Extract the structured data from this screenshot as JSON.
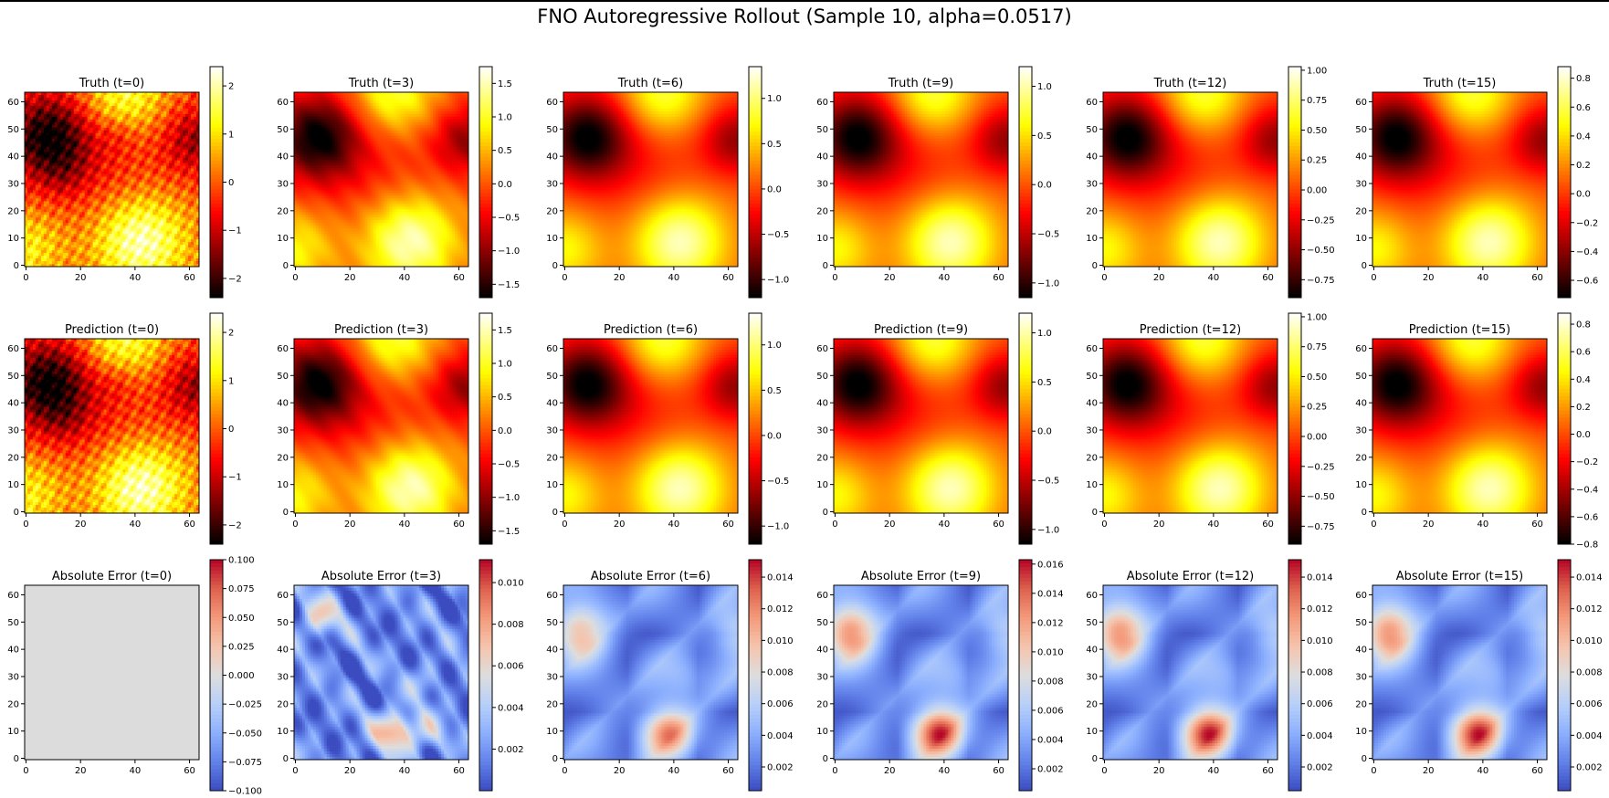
{
  "figure": {
    "title": "FNO Autoregressive Rollout (Sample 10, alpha=0.0517)",
    "colors": {
      "hot_map": "hot",
      "error_map": "coolwarm",
      "error_t0_fill": "#dcdcdc"
    }
  },
  "chart_data": {
    "type": "heatmap",
    "grid": "64x64",
    "xlim": [
      0,
      63
    ],
    "ylim": [
      0,
      63
    ],
    "x_ticks": [
      "0",
      "20",
      "40",
      "60"
    ],
    "y_ticks": [
      "0",
      "10",
      "20",
      "30",
      "40",
      "50",
      "60"
    ],
    "panels": [
      {
        "row": "Truth",
        "title": "Truth (t=0)",
        "cmap": "hot",
        "vmin": -2.4,
        "vmax": 2.4,
        "cbar_ticks": [
          {
            "v": 2,
            "label": "2"
          },
          {
            "v": 1,
            "label": "1"
          },
          {
            "v": 0,
            "label": "0"
          },
          {
            "v": -1,
            "label": "−1"
          },
          {
            "v": -2,
            "label": "−2"
          }
        ]
      },
      {
        "row": "Truth",
        "title": "Truth (t=3)",
        "cmap": "hot",
        "vmin": -1.7,
        "vmax": 1.75,
        "cbar_ticks": [
          {
            "v": 1.5,
            "label": "1.5"
          },
          {
            "v": 1.0,
            "label": "1.0"
          },
          {
            "v": 0.5,
            "label": "0.5"
          },
          {
            "v": 0.0,
            "label": "0.0"
          },
          {
            "v": -0.5,
            "label": "−0.5"
          },
          {
            "v": -1.0,
            "label": "−1.0"
          },
          {
            "v": -1.5,
            "label": "−1.5"
          }
        ]
      },
      {
        "row": "Truth",
        "title": "Truth (t=6)",
        "cmap": "hot",
        "vmin": -1.2,
        "vmax": 1.35,
        "cbar_ticks": [
          {
            "v": 1.0,
            "label": "1.0"
          },
          {
            "v": 0.5,
            "label": "0.5"
          },
          {
            "v": 0.0,
            "label": "0.0"
          },
          {
            "v": -0.5,
            "label": "−0.5"
          },
          {
            "v": -1.0,
            "label": "−1.0"
          }
        ]
      },
      {
        "row": "Truth",
        "title": "Truth (t=9)",
        "cmap": "hot",
        "vmin": -1.15,
        "vmax": 1.2,
        "cbar_ticks": [
          {
            "v": 1.0,
            "label": "1.0"
          },
          {
            "v": 0.5,
            "label": "0.5"
          },
          {
            "v": 0.0,
            "label": "0.0"
          },
          {
            "v": -0.5,
            "label": "−0.5"
          },
          {
            "v": -1.0,
            "label": "−1.0"
          }
        ]
      },
      {
        "row": "Truth",
        "title": "Truth (t=12)",
        "cmap": "hot",
        "vmin": -0.9,
        "vmax": 1.03,
        "cbar_ticks": [
          {
            "v": 1.0,
            "label": "1.00"
          },
          {
            "v": 0.75,
            "label": "0.75"
          },
          {
            "v": 0.5,
            "label": "0.50"
          },
          {
            "v": 0.25,
            "label": "0.25"
          },
          {
            "v": 0.0,
            "label": "0.00"
          },
          {
            "v": -0.25,
            "label": "−0.25"
          },
          {
            "v": -0.5,
            "label": "−0.50"
          },
          {
            "v": -0.75,
            "label": "−0.75"
          }
        ]
      },
      {
        "row": "Truth",
        "title": "Truth (t=15)",
        "cmap": "hot",
        "vmin": -0.72,
        "vmax": 0.88,
        "cbar_ticks": [
          {
            "v": 0.8,
            "label": "0.8"
          },
          {
            "v": 0.6,
            "label": "0.6"
          },
          {
            "v": 0.4,
            "label": "0.4"
          },
          {
            "v": 0.2,
            "label": "0.2"
          },
          {
            "v": 0.0,
            "label": "0.0"
          },
          {
            "v": -0.2,
            "label": "−0.2"
          },
          {
            "v": -0.4,
            "label": "−0.4"
          },
          {
            "v": -0.6,
            "label": "−0.6"
          }
        ]
      },
      {
        "row": "Prediction",
        "title": "Prediction (t=0)",
        "cmap": "hot",
        "vmin": -2.4,
        "vmax": 2.4,
        "cbar_ticks": [
          {
            "v": 2,
            "label": "2"
          },
          {
            "v": 1,
            "label": "1"
          },
          {
            "v": 0,
            "label": "0"
          },
          {
            "v": -1,
            "label": "−1"
          },
          {
            "v": -2,
            "label": "−2"
          }
        ]
      },
      {
        "row": "Prediction",
        "title": "Prediction (t=3)",
        "cmap": "hot",
        "vmin": -1.7,
        "vmax": 1.75,
        "cbar_ticks": [
          {
            "v": 1.5,
            "label": "1.5"
          },
          {
            "v": 1.0,
            "label": "1.0"
          },
          {
            "v": 0.5,
            "label": "0.5"
          },
          {
            "v": 0.0,
            "label": "0.0"
          },
          {
            "v": -0.5,
            "label": "−0.5"
          },
          {
            "v": -1.0,
            "label": "−1.0"
          },
          {
            "v": -1.5,
            "label": "−1.5"
          }
        ]
      },
      {
        "row": "Prediction",
        "title": "Prediction (t=6)",
        "cmap": "hot",
        "vmin": -1.2,
        "vmax": 1.35,
        "cbar_ticks": [
          {
            "v": 1.0,
            "label": "1.0"
          },
          {
            "v": 0.5,
            "label": "0.5"
          },
          {
            "v": 0.0,
            "label": "0.0"
          },
          {
            "v": -0.5,
            "label": "−0.5"
          },
          {
            "v": -1.0,
            "label": "−1.0"
          }
        ]
      },
      {
        "row": "Prediction",
        "title": "Prediction (t=9)",
        "cmap": "hot",
        "vmin": -1.15,
        "vmax": 1.2,
        "cbar_ticks": [
          {
            "v": 1.0,
            "label": "1.0"
          },
          {
            "v": 0.5,
            "label": "0.5"
          },
          {
            "v": 0.0,
            "label": "0.0"
          },
          {
            "v": -0.5,
            "label": "−0.5"
          },
          {
            "v": -1.0,
            "label": "−1.0"
          }
        ]
      },
      {
        "row": "Prediction",
        "title": "Prediction (t=12)",
        "cmap": "hot",
        "vmin": -0.9,
        "vmax": 1.03,
        "cbar_ticks": [
          {
            "v": 1.0,
            "label": "1.00"
          },
          {
            "v": 0.75,
            "label": "0.75"
          },
          {
            "v": 0.5,
            "label": "0.50"
          },
          {
            "v": 0.25,
            "label": "0.25"
          },
          {
            "v": 0.0,
            "label": "0.00"
          },
          {
            "v": -0.25,
            "label": "−0.25"
          },
          {
            "v": -0.5,
            "label": "−0.50"
          },
          {
            "v": -0.75,
            "label": "−0.75"
          }
        ]
      },
      {
        "row": "Prediction",
        "title": "Prediction (t=15)",
        "cmap": "hot",
        "vmin": -0.8,
        "vmax": 0.88,
        "cbar_ticks": [
          {
            "v": 0.8,
            "label": "0.8"
          },
          {
            "v": 0.6,
            "label": "0.6"
          },
          {
            "v": 0.4,
            "label": "0.4"
          },
          {
            "v": 0.2,
            "label": "0.2"
          },
          {
            "v": 0.0,
            "label": "0.0"
          },
          {
            "v": -0.2,
            "label": "−0.2"
          },
          {
            "v": -0.4,
            "label": "−0.4"
          },
          {
            "v": -0.6,
            "label": "−0.6"
          },
          {
            "v": -0.8,
            "label": "−0.8"
          }
        ]
      },
      {
        "row": "Absolute Error",
        "title": "Absolute Error (t=0)",
        "cmap": "coolwarm",
        "vmin": -0.1,
        "vmax": 0.1,
        "cbar_ticks": [
          {
            "v": 0.1,
            "label": "0.100"
          },
          {
            "v": 0.075,
            "label": "0.075"
          },
          {
            "v": 0.05,
            "label": "0.050"
          },
          {
            "v": 0.025,
            "label": "0.025"
          },
          {
            "v": 0.0,
            "label": "0.000"
          },
          {
            "v": -0.025,
            "label": "−0.025"
          },
          {
            "v": -0.05,
            "label": "−0.050"
          },
          {
            "v": -0.075,
            "label": "−0.075"
          },
          {
            "v": -0.1,
            "label": "−0.100"
          }
        ]
      },
      {
        "row": "Absolute Error",
        "title": "Absolute Error (t=3)",
        "cmap": "coolwarm",
        "vmin": 0.0,
        "vmax": 0.0111,
        "cbar_ticks": [
          {
            "v": 0.01,
            "label": "0.010"
          },
          {
            "v": 0.008,
            "label": "0.008"
          },
          {
            "v": 0.006,
            "label": "0.006"
          },
          {
            "v": 0.004,
            "label": "0.004"
          },
          {
            "v": 0.002,
            "label": "0.002"
          }
        ]
      },
      {
        "row": "Absolute Error",
        "title": "Absolute Error (t=6)",
        "cmap": "coolwarm",
        "vmin": 0.0005,
        "vmax": 0.0151,
        "cbar_ticks": [
          {
            "v": 0.014,
            "label": "0.014"
          },
          {
            "v": 0.012,
            "label": "0.012"
          },
          {
            "v": 0.01,
            "label": "0.010"
          },
          {
            "v": 0.008,
            "label": "0.008"
          },
          {
            "v": 0.006,
            "label": "0.006"
          },
          {
            "v": 0.004,
            "label": "0.004"
          },
          {
            "v": 0.002,
            "label": "0.002"
          }
        ]
      },
      {
        "row": "Absolute Error",
        "title": "Absolute Error (t=9)",
        "cmap": "coolwarm",
        "vmin": 0.0005,
        "vmax": 0.0163,
        "cbar_ticks": [
          {
            "v": 0.016,
            "label": "0.016"
          },
          {
            "v": 0.014,
            "label": "0.014"
          },
          {
            "v": 0.012,
            "label": "0.012"
          },
          {
            "v": 0.01,
            "label": "0.010"
          },
          {
            "v": 0.008,
            "label": "0.008"
          },
          {
            "v": 0.006,
            "label": "0.006"
          },
          {
            "v": 0.004,
            "label": "0.004"
          },
          {
            "v": 0.002,
            "label": "0.002"
          }
        ]
      },
      {
        "row": "Absolute Error",
        "title": "Absolute Error (t=12)",
        "cmap": "coolwarm",
        "vmin": 0.0005,
        "vmax": 0.0151,
        "cbar_ticks": [
          {
            "v": 0.014,
            "label": "0.014"
          },
          {
            "v": 0.012,
            "label": "0.012"
          },
          {
            "v": 0.01,
            "label": "0.010"
          },
          {
            "v": 0.008,
            "label": "0.008"
          },
          {
            "v": 0.006,
            "label": "0.006"
          },
          {
            "v": 0.004,
            "label": "0.004"
          },
          {
            "v": 0.002,
            "label": "0.002"
          }
        ]
      },
      {
        "row": "Absolute Error",
        "title": "Absolute Error (t=15)",
        "cmap": "coolwarm",
        "vmin": 0.0005,
        "vmax": 0.0151,
        "cbar_ticks": [
          {
            "v": 0.014,
            "label": "0.014"
          },
          {
            "v": 0.012,
            "label": "0.012"
          },
          {
            "v": 0.01,
            "label": "0.010"
          },
          {
            "v": 0.008,
            "label": "0.008"
          },
          {
            "v": 0.006,
            "label": "0.006"
          },
          {
            "v": 0.004,
            "label": "0.004"
          },
          {
            "v": 0.002,
            "label": "0.002"
          }
        ]
      }
    ]
  }
}
